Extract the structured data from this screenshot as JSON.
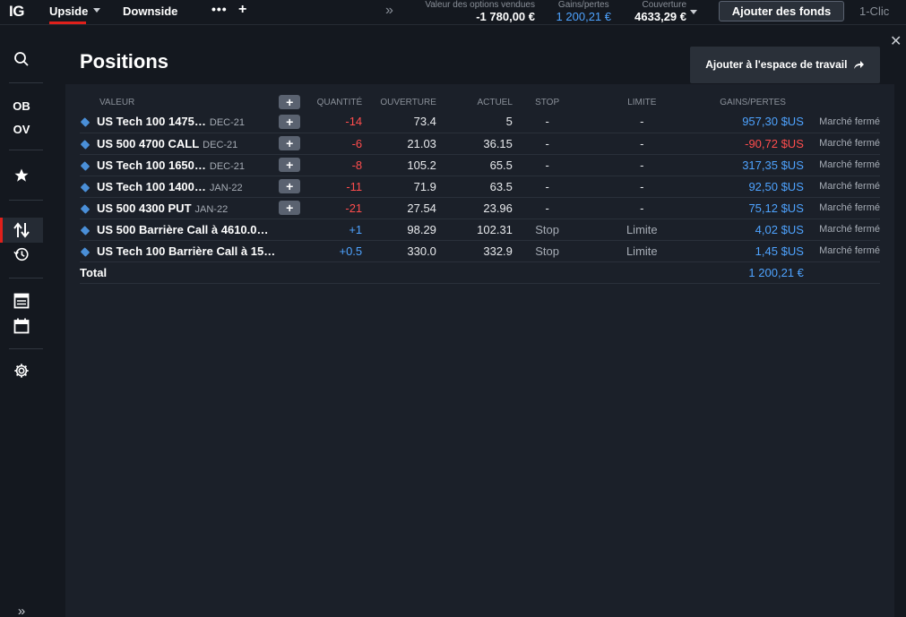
{
  "header": {
    "logo": "IG",
    "tabs": [
      {
        "label": "Upside"
      },
      {
        "label": "Downside"
      }
    ],
    "more": "•••",
    "add": "+",
    "expand": "»",
    "stats": [
      {
        "label": "Valeur des options vendues",
        "value": "-1 780,00 €"
      },
      {
        "label": "Gains/pertes",
        "value": "1 200,21 €"
      },
      {
        "label": "Couverture",
        "value": "4633,29 €"
      }
    ],
    "fund_button": "Ajouter des fonds",
    "one_click": "1-Clic"
  },
  "rail": {
    "ob": "OB",
    "ov": "OV"
  },
  "main": {
    "title": "Positions",
    "workspace_button": "Ajouter à l'espace de travail",
    "close": "✕",
    "columns": {
      "valeur": "VALEUR",
      "quantite": "QUANTITÉ",
      "ouverture": "OUVERTURE",
      "actuel": "ACTUEL",
      "stop": "STOP",
      "limite": "LIMITE",
      "gains": "GAINS/PERTES"
    },
    "add_label": "+",
    "rows": [
      {
        "name": "US Tech 100 1475…",
        "expiry": "DEC-21",
        "qty": "-14",
        "open": "73.4",
        "current": "5",
        "stop": "-",
        "limit": "-",
        "pl": "957,30 $US",
        "status": "Marché fermé",
        "qty_color": "red",
        "pl_color": "blue",
        "has_add": true
      },
      {
        "name": "US 500 4700 CALL",
        "expiry": "DEC-21",
        "qty": "-6",
        "open": "21.03",
        "current": "36.15",
        "stop": "-",
        "limit": "-",
        "pl": "-90,72 $US",
        "status": "Marché fermé",
        "qty_color": "red",
        "pl_color": "red",
        "has_add": true
      },
      {
        "name": "US Tech 100 1650…",
        "expiry": "DEC-21",
        "qty": "-8",
        "open": "105.2",
        "current": "65.5",
        "stop": "-",
        "limit": "-",
        "pl": "317,35 $US",
        "status": "Marché fermé",
        "qty_color": "red",
        "pl_color": "blue",
        "has_add": true
      },
      {
        "name": "US Tech 100 1400…",
        "expiry": "JAN-22",
        "qty": "-11",
        "open": "71.9",
        "current": "63.5",
        "stop": "-",
        "limit": "-",
        "pl": "92,50 $US",
        "status": "Marché fermé",
        "qty_color": "red",
        "pl_color": "blue",
        "has_add": true
      },
      {
        "name": "US 500 4300 PUT",
        "expiry": "JAN-22",
        "qty": "-21",
        "open": "27.54",
        "current": "23.96",
        "stop": "-",
        "limit": "-",
        "pl": "75,12 $US",
        "status": "Marché fermé",
        "qty_color": "red",
        "pl_color": "blue",
        "has_add": true
      },
      {
        "name": "US 500 Barrière Call à 4610.0…",
        "expiry": "",
        "qty": "+1",
        "open": "98.29",
        "current": "102.31",
        "stop": "Stop",
        "limit": "Limite",
        "pl": "4,02 $US",
        "status": "Marché fermé",
        "qty_color": "blue",
        "pl_color": "blue",
        "has_add": false
      },
      {
        "name": "US Tech 100 Barrière Call à 15…",
        "expiry": "",
        "qty": "+0.5",
        "open": "330.0",
        "current": "332.9",
        "stop": "Stop",
        "limit": "Limite",
        "pl": "1,45 $US",
        "status": "Marché fermé",
        "qty_color": "blue",
        "pl_color": "blue",
        "has_add": false
      }
    ],
    "total_label": "Total",
    "total_value": "1 200,21 €"
  },
  "colors": {
    "accent_red": "#e0201b",
    "gain_blue": "#4ea3ff",
    "loss_red": "#ff4d4d"
  }
}
